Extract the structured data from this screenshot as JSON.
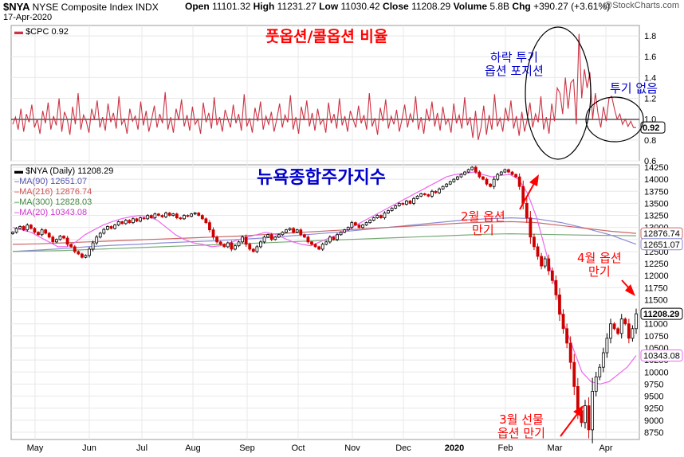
{
  "header": {
    "symbol": "$NYA",
    "name": "NYSE Composite Index INDX",
    "date": "17-Apr-2020",
    "open_label": "Open",
    "open": "11101.32",
    "high_label": "High",
    "high": "11231.27",
    "low_label": "Low",
    "low": "11030.42",
    "close_label": "Close",
    "close": "11208.29",
    "volume_label": "Volume",
    "volume": "5.8B",
    "chg_label": "Chg",
    "chg": "+390.27 (+3.61%)",
    "watermark": "@StockCharts.com"
  },
  "colors": {
    "cpc": "#cc3344",
    "ma90": "#8a8ad6",
    "ma216": "#cc6666",
    "ma300": "#77aa77",
    "ma20": "#ee66ee",
    "annotation_red": "#ff0000",
    "annotation_blue": "#0000cc",
    "grid": "#e8e8e8"
  },
  "top_panel": {
    "legend": "$CPC 0.92",
    "yticks": [
      "1.8",
      "1.6",
      "1.4",
      "1.2",
      "1.0",
      "0.8",
      "0.6"
    ],
    "last_label": "0.92"
  },
  "main_panel": {
    "legend_main": "$NYA (Daily) 11208.29",
    "legend_ma90": "MA(90) 12651.07",
    "legend_ma216": "MA(216) 12876.74",
    "legend_ma300": "MA(300) 12828.03",
    "legend_ma20": "MA(20) 10343.08",
    "yticks": [
      "14250",
      "14000",
      "13750",
      "13500",
      "13250",
      "13000",
      "12750",
      "12500",
      "12250",
      "12000",
      "11750",
      "11500",
      "11250",
      "11000",
      "10750",
      "10500",
      "10250",
      "10000",
      "9750",
      "9500",
      "9250",
      "9000",
      "8750"
    ],
    "labels": {
      "close": "11208.29",
      "ma216": "12876.74",
      "ma90": "12651.07",
      "ma20": "10343.08"
    }
  },
  "x_labels": [
    "May",
    "Jun",
    "Jul",
    "Aug",
    "Sep",
    "Oct",
    "Nov",
    "Dec",
    "2020",
    "Feb",
    "Mar",
    "Apr"
  ],
  "annotations": {
    "top_title": "풋옵션/콜옵션 비율",
    "hedge_line1": "하락 투기",
    "hedge_line2": "옵션 포지션",
    "no_spec": "투기 없음",
    "main_title": "뉴욕종합주가지수",
    "feb_line1": "2월 옵션",
    "feb_line2": "만기",
    "apr_line1": "4월 옵션",
    "apr_line2": "만기",
    "mar_line1": "3월 선물",
    "mar_line2": "옵션 만기"
  },
  "chart_data": [
    {
      "type": "line",
      "series": [
        {
          "name": "$CPC",
          "values": [
            0.95,
            1.02,
            0.9,
            1.1,
            0.88,
            1.05,
            0.97,
            1.14,
            0.92,
            1.0,
            0.86,
            1.08,
            0.96,
            1.16,
            0.9,
            1.03,
            0.94,
            1.2,
            0.88,
            1.07,
            1.0,
            0.85,
            1.12,
            0.95,
            1.25,
            0.9,
            1.04,
            0.98,
            0.87,
            1.1,
            1.0,
            1.18,
            0.92,
            1.02,
            0.89,
            1.15,
            0.97,
            1.06,
            0.91,
            1.22,
            0.95,
            1.0,
            0.86,
            1.1,
            0.98,
            1.03,
            0.9,
            1.17,
            0.94,
            1.08,
            0.88,
            1.0,
            1.13,
            0.92,
            1.05,
            0.96,
            1.26,
            0.9,
            1.02,
            0.87,
            1.1,
            0.99,
            1.19,
            0.93,
            1.04,
            0.89,
            1.12,
            0.95,
            1.0,
            0.86,
            1.16,
            0.97,
            1.06,
            0.91,
            1.21,
            0.94,
            1.02,
            0.88,
            1.09,
            1.0,
            0.92,
            1.14,
            0.96,
            1.05,
            0.89,
            1.24,
            0.93,
            1.01,
            0.87,
            1.11,
            0.98,
            1.17,
            0.9,
            1.03,
            0.95,
            1.07,
            0.88,
            1.0,
            1.15,
            0.92,
            1.04,
            0.97,
            1.23,
            0.9,
            1.02,
            0.86,
            1.12,
            0.99,
            1.18,
            0.93,
            1.06,
            0.89,
            1.1,
            0.95,
            1.0,
            0.87,
            1.16,
            0.96,
            1.05,
            0.91,
            1.2,
            0.94,
            1.03,
            0.88,
            1.08,
            1.0,
            0.92,
            1.13,
            0.96,
            1.04,
            0.9,
            1.25,
            0.93,
            1.01,
            0.85,
            1.11,
            0.98,
            1.19,
            0.91,
            1.03,
            0.95,
            1.09,
            0.88,
            1.0,
            1.14,
            0.92,
            1.05,
            0.97,
            1.22,
            0.9,
            1.02,
            0.86,
            1.1,
            0.98,
            1.17,
            0.93,
            1.06,
            0.89,
            1.12,
            0.95,
            1.0,
            0.87,
            1.15,
            0.96,
            1.04,
            0.91,
            1.21,
            0.94,
            1.02,
            0.82,
            1.08,
            0.8,
            0.92,
            1.13,
            0.85,
            1.04,
            0.9,
            1.24,
            0.93,
            1.01,
            0.88,
            1.11,
            0.98,
            1.18,
            0.91,
            1.03,
            0.84,
            1.07,
            0.88,
            1.0,
            1.16,
            0.92,
            1.05,
            0.97,
            1.22,
            0.9,
            1.02,
            0.86,
            1.15,
            0.98,
            1.3,
            1.25,
            1.05,
            1.4,
            1.1,
            1.35,
            1.38,
            0.95,
            1.82,
            1.2,
            1.48,
            1.3,
            1.45,
            1.0,
            1.25,
            1.05,
            0.92,
            1.12,
            0.98,
            1.2,
            1.22,
            1.1,
            1.0,
            1.05,
            0.95,
            1.0,
            0.93,
            0.98,
            0.92,
            0.92
          ]
        }
      ],
      "ylim": [
        0.6,
        1.9
      ]
    },
    {
      "type": "line",
      "series": [
        {
          "name": "$NYA",
          "values": [
            12900,
            12980,
            13020,
            12950,
            13050,
            12980,
            12900,
            12850,
            12950,
            12880,
            12800,
            12700,
            12750,
            12820,
            12780,
            12650,
            12600,
            12500,
            12450,
            12380,
            12420,
            12550,
            12680,
            12800,
            12880,
            12960,
            13020,
            12980,
            13050,
            13120,
            13080,
            13150,
            13100,
            13180,
            13130,
            13200,
            13180,
            13250,
            13200,
            13280,
            13250,
            13220,
            13300,
            13250,
            13280,
            13200,
            13180,
            13250,
            13230,
            13280,
            13300,
            13250,
            13180,
            13100,
            12950,
            12800,
            12700,
            12650,
            12600,
            12680,
            12550,
            12620,
            12700,
            12800,
            12650,
            12550,
            12500,
            12600,
            12700,
            12800,
            12850,
            12750,
            12800,
            12850,
            12900,
            12950,
            12980,
            12900,
            12950,
            12850,
            12800,
            12700,
            12650,
            12600,
            12550,
            12650,
            12700,
            12800,
            12750,
            12850,
            12900,
            12950,
            13000,
            13100,
            13050,
            13000,
            13050,
            13100,
            13150,
            13200,
            13250,
            13200,
            13300,
            13350,
            13400,
            13450,
            13500,
            13480,
            13550,
            13500,
            13600,
            13650,
            13700,
            13680,
            13650,
            13750,
            13720,
            13800,
            13850,
            13900,
            13950,
            14000,
            14050,
            14100,
            14150,
            14200,
            14250,
            14150,
            14050,
            14000,
            13900,
            13850,
            14000,
            14100,
            14150,
            14200,
            14150,
            14100,
            14050,
            13850,
            13500,
            13200,
            12800,
            12600,
            12400,
            12200,
            12350,
            12100,
            11900,
            11600,
            11200,
            10900,
            10600,
            10200,
            9700,
            9200,
            8950,
            9300,
            8800,
            9600,
            9900,
            10100,
            10400,
            10700,
            11000,
            10900,
            10800,
            11100,
            11000,
            10700,
            10900,
            11208
          ]
        },
        {
          "name": "MA(90)",
          "values": [
            12500,
            12530,
            12560,
            12600,
            12630,
            12650,
            12680,
            12700,
            12720,
            12750,
            12780,
            12820,
            12860,
            12900,
            12950,
            13000,
            13050,
            13100,
            13150,
            13180,
            13200,
            13180,
            13100,
            12980,
            12840,
            12651
          ]
        },
        {
          "name": "MA(216)",
          "values": [
            12650,
            12660,
            12680,
            12700,
            12720,
            12740,
            12760,
            12780,
            12800,
            12820,
            12850,
            12880,
            12910,
            12940,
            12970,
            13000,
            13030,
            13060,
            13090,
            13110,
            13120,
            13100,
            13040,
            12980,
            12920,
            12877
          ]
        },
        {
          "name": "MA(300)",
          "values": [
            12500,
            12510,
            12520,
            12540,
            12560,
            12580,
            12600,
            12620,
            12640,
            12660,
            12680,
            12700,
            12720,
            12740,
            12760,
            12780,
            12800,
            12820,
            12840,
            12860,
            12870,
            12860,
            12850,
            12840,
            12835,
            12828
          ]
        },
        {
          "name": "MA(20)",
          "values": [
            13000,
            12950,
            12900,
            12800,
            12700,
            12600,
            12600,
            12700,
            12850,
            12950,
            13050,
            13120,
            13180,
            13220,
            13250,
            13230,
            13150,
            13000,
            12850,
            12750,
            12680,
            12650,
            12600,
            12620,
            12680,
            12750,
            12800,
            12850,
            12900,
            12860,
            12780,
            12700,
            12650,
            12620,
            12700,
            12780,
            12850,
            12950,
            13050,
            13150,
            13250,
            13350,
            13450,
            13550,
            13650,
            13750,
            13850,
            13950,
            14050,
            14100,
            14120,
            14150,
            14100,
            14050,
            14080,
            14100,
            14000,
            13700,
            13200,
            12500,
            11800,
            11000,
            10500,
            10000,
            9800,
            9750,
            9800,
            9950,
            10100,
            10343
          ]
        }
      ],
      "ylim": [
        8600,
        14300
      ]
    }
  ]
}
